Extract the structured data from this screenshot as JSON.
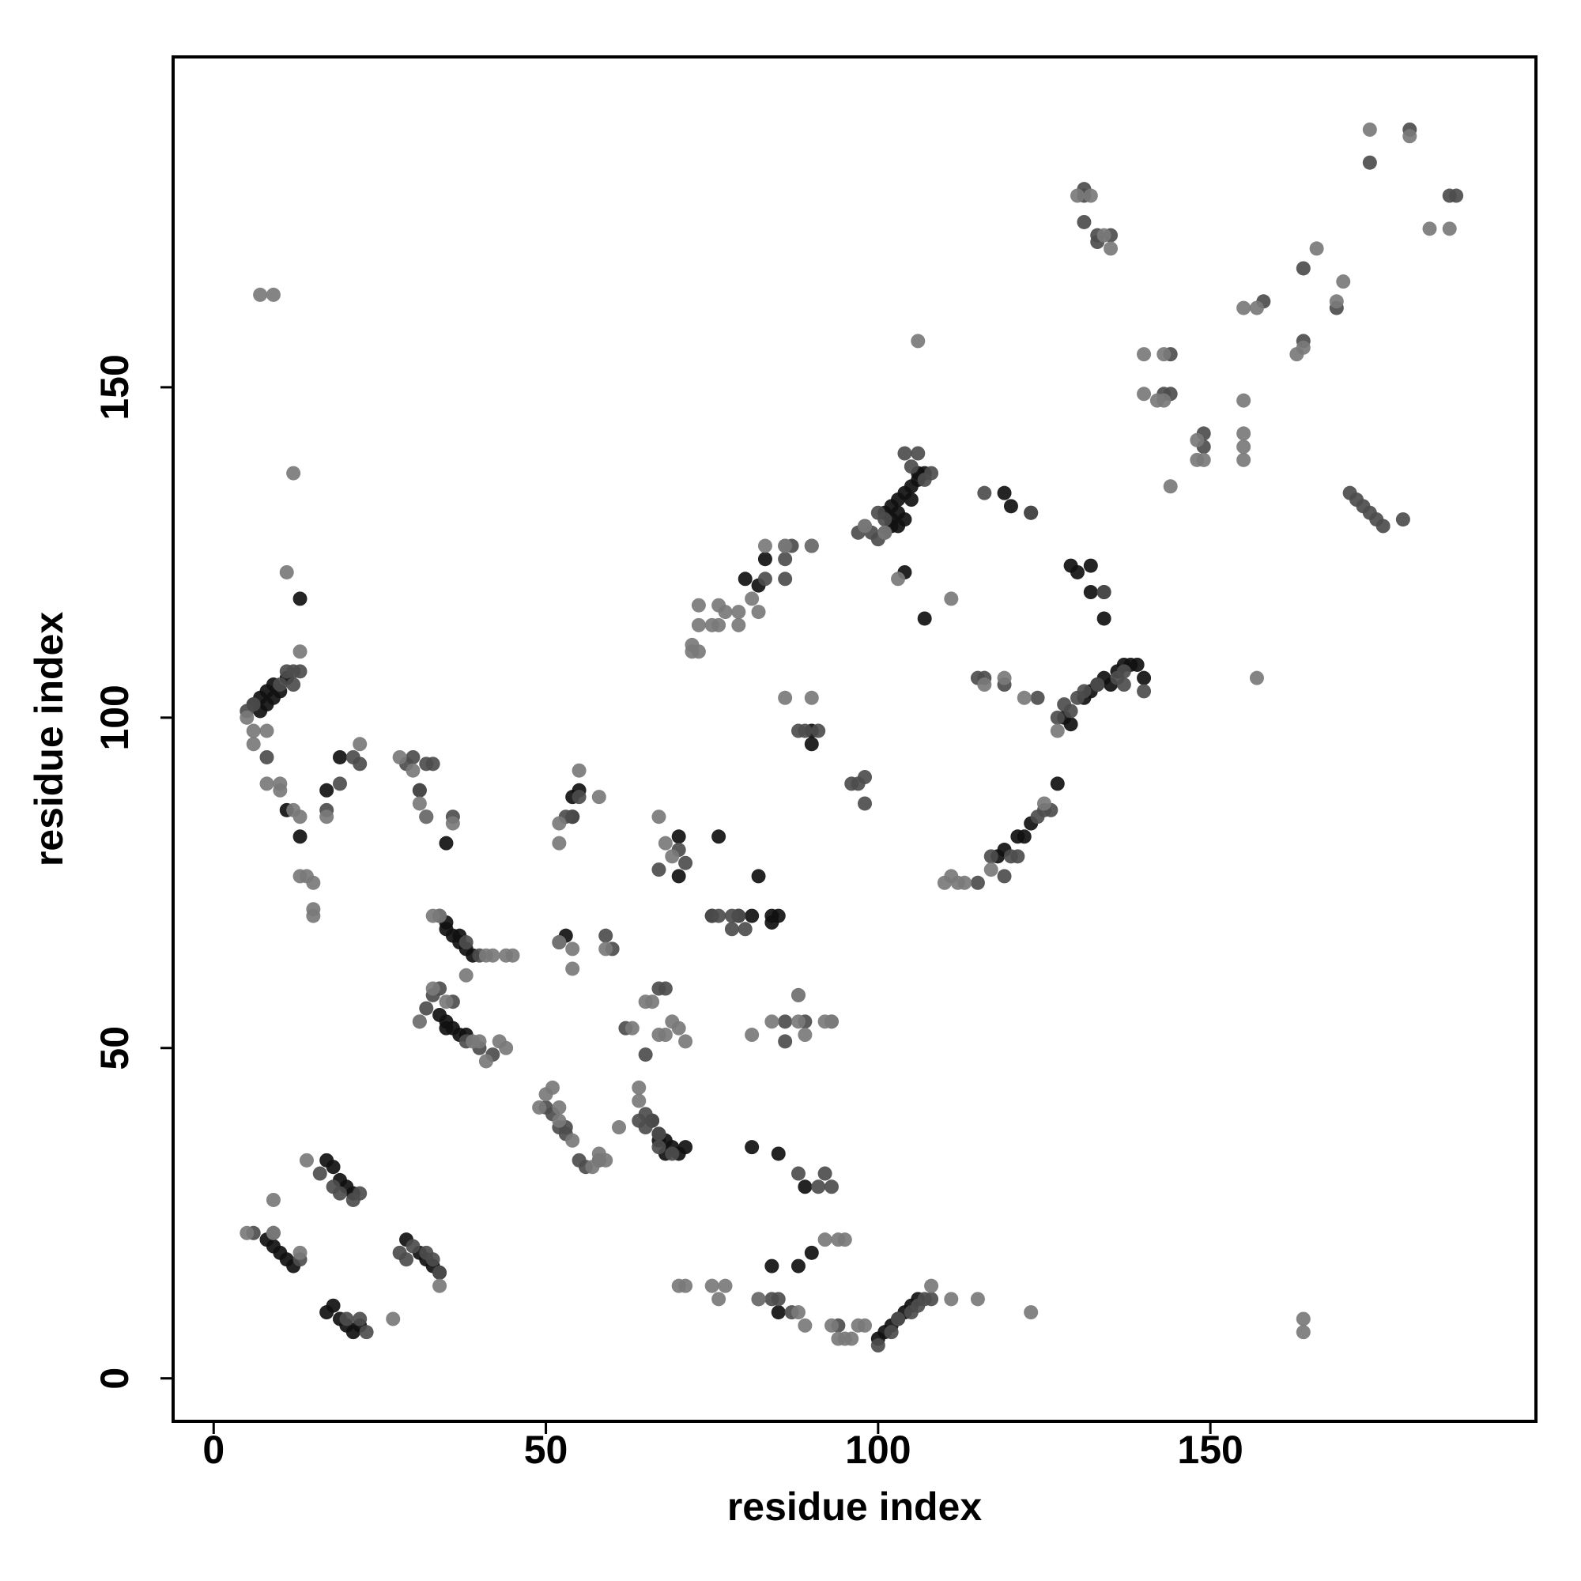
{
  "chart_data": {
    "type": "scatter",
    "x_label": "residue index",
    "y_label": "residue index",
    "xlim": [
      -6.1,
      199
    ],
    "ylim": [
      -6.5,
      200
    ],
    "xticks": [
      0,
      50,
      100,
      150
    ],
    "yticks": [
      0,
      50,
      100,
      150
    ],
    "series": [
      {
        "color": "#111111",
        "x": [
          6,
          7,
          8,
          9,
          7,
          8,
          9,
          10,
          11,
          11,
          13,
          13,
          17,
          19,
          31,
          32,
          35,
          34,
          35,
          35,
          36,
          37,
          37,
          38,
          39,
          34,
          35,
          35,
          36,
          37,
          38,
          54,
          54,
          55,
          52,
          53,
          66,
          67,
          67,
          68,
          68,
          69,
          70,
          71,
          70,
          70,
          76,
          82,
          75,
          79,
          81,
          84,
          84,
          85,
          80,
          82,
          83,
          90,
          90,
          90,
          101,
          102,
          102,
          103,
          103,
          104,
          105,
          106,
          101,
          102,
          103,
          104,
          105,
          106,
          107,
          104,
          107,
          119,
          120,
          123,
          129,
          130,
          132,
          132,
          134,
          134,
          131,
          132,
          133,
          134,
          135,
          136,
          137,
          138,
          139,
          140,
          129,
          128,
          118,
          119,
          121,
          122,
          123,
          127,
          8,
          9,
          10,
          11,
          12,
          17,
          18,
          19,
          20,
          21,
          29,
          31,
          32,
          33,
          34,
          17,
          18,
          19,
          20,
          21,
          22,
          100,
          101,
          102,
          103,
          104,
          105,
          106,
          82,
          85,
          81,
          85,
          89,
          84,
          88,
          90
        ],
        "y": [
          102,
          103,
          104,
          105,
          101,
          102,
          103,
          104,
          106,
          86,
          82,
          118,
          89,
          94,
          89,
          85,
          81,
          70,
          69,
          68,
          67,
          67,
          66,
          65,
          64,
          55,
          54,
          53,
          53,
          52,
          52,
          88,
          85,
          89,
          66,
          67,
          39,
          37,
          36,
          36,
          34,
          35,
          34,
          35,
          82,
          76,
          82,
          76,
          70,
          70,
          70,
          70,
          69,
          70,
          121,
          120,
          124,
          126,
          98,
          96,
          128,
          129,
          132,
          131,
          133,
          134,
          135,
          137,
          131,
          130,
          129,
          130,
          133,
          136,
          137,
          122,
          115,
          134,
          132,
          131,
          123,
          122,
          123,
          119,
          119,
          115,
          103,
          104,
          105,
          106,
          105,
          107,
          108,
          108,
          108,
          106,
          99,
          100,
          79,
          80,
          82,
          82,
          84,
          90,
          21,
          20,
          19,
          18,
          17,
          33,
          32,
          30,
          29,
          28,
          21,
          19,
          18,
          17,
          16,
          10,
          11,
          9,
          8,
          7,
          8,
          6,
          7,
          8,
          9,
          10,
          11,
          12,
          12,
          10,
          35,
          34,
          29,
          17,
          17,
          19
        ]
      },
      {
        "color": "#4d4d4d",
        "x": [
          5,
          6,
          10,
          11,
          12,
          8,
          12,
          13,
          17,
          19,
          21,
          22,
          29,
          30,
          31,
          32,
          33,
          36,
          38,
          40,
          31,
          32,
          33,
          34,
          36,
          38,
          40,
          42,
          50,
          51,
          52,
          53,
          53,
          55,
          56,
          58,
          53,
          54,
          55,
          59,
          60,
          62,
          64,
          65,
          65,
          66,
          67,
          67,
          69,
          67,
          68,
          71,
          70,
          75,
          76,
          78,
          78,
          79,
          80,
          83,
          86,
          86,
          86,
          87,
          88,
          89,
          91,
          96,
          97,
          98,
          98,
          97,
          98,
          99,
          100,
          101,
          100,
          107,
          108,
          105,
          104,
          106,
          115,
          116,
          119,
          123,
          124,
          127,
          128,
          129,
          130,
          131,
          133,
          136,
          137,
          140,
          116,
          115,
          117,
          119,
          120,
          121,
          124,
          125,
          126,
          131,
          133,
          131,
          135,
          134,
          143,
          144,
          149,
          149,
          158,
          164,
          164,
          169,
          171,
          172,
          173,
          174,
          175,
          176,
          179,
          180,
          186,
          187,
          174,
          6,
          9,
          13,
          16,
          18,
          19,
          21,
          22,
          28,
          30,
          32,
          33,
          34,
          20,
          22,
          23,
          29,
          100,
          102,
          103,
          105,
          106,
          107,
          108,
          84,
          85,
          87,
          88,
          91,
          92,
          93,
          94,
          65,
          67,
          89,
          86,
          86,
          133,
          131,
          137,
          144
        ],
        "y": [
          101,
          102,
          105,
          107,
          107,
          94,
          105,
          107,
          86,
          90,
          94,
          93,
          93,
          94,
          89,
          93,
          93,
          85,
          66,
          64,
          54,
          56,
          58,
          59,
          57,
          51,
          50,
          49,
          41,
          40,
          38,
          38,
          37,
          33,
          32,
          33,
          85,
          85,
          88,
          67,
          65,
          53,
          39,
          38,
          40,
          39,
          37,
          35,
          34,
          59,
          59,
          78,
          80,
          70,
          70,
          68,
          70,
          70,
          68,
          121,
          124,
          126,
          121,
          126,
          98,
          98,
          98,
          90,
          90,
          91,
          87,
          128,
          129,
          128,
          127,
          130,
          131,
          136,
          137,
          138,
          140,
          140,
          106,
          106,
          105,
          131,
          103,
          100,
          102,
          101,
          103,
          104,
          105,
          106,
          107,
          104,
          134,
          75,
          79,
          76,
          79,
          79,
          85,
          86,
          86,
          179,
          172,
          175,
          173,
          119,
          149,
          149,
          143,
          141,
          163,
          168,
          157,
          162,
          134,
          133,
          132,
          131,
          130,
          129,
          130,
          189,
          179,
          179,
          184,
          22,
          22,
          18,
          31,
          29,
          28,
          27,
          28,
          19,
          20,
          19,
          18,
          16,
          9,
          9,
          7,
          18,
          5,
          7,
          9,
          10,
          11,
          12,
          12,
          12,
          12,
          10,
          31,
          29,
          31,
          29,
          8,
          49,
          77,
          54,
          51,
          54,
          173,
          180,
          105,
          155
        ]
      },
      {
        "color": "#7a7a7a",
        "x": [
          5,
          6,
          6,
          8,
          8,
          10,
          10,
          12,
          13,
          13,
          14,
          13,
          15,
          15,
          15,
          11,
          12,
          7,
          9,
          17,
          22,
          28,
          30,
          31,
          32,
          33,
          34,
          36,
          41,
          42,
          44,
          45,
          38,
          31,
          33,
          35,
          39,
          40,
          41,
          43,
          44,
          49,
          50,
          51,
          52,
          52,
          54,
          57,
          58,
          58,
          59,
          61,
          52,
          52,
          55,
          58,
          52,
          54,
          54,
          59,
          63,
          64,
          64,
          65,
          66,
          67,
          68,
          69,
          70,
          71,
          67,
          68,
          69,
          72,
          73,
          76,
          79,
          81,
          82,
          77,
          72,
          73,
          73,
          75,
          76,
          79,
          83,
          86,
          90,
          90,
          86,
          88,
          89,
          92,
          93,
          98,
          101,
          103,
          111,
          106,
          110,
          111,
          112,
          113,
          117,
          127,
          116,
          119,
          122,
          125,
          130,
          132,
          134,
          135,
          140,
          140,
          143,
          143,
          144,
          142,
          148,
          148,
          149,
          155,
          155,
          155,
          155,
          157,
          155,
          157,
          163,
          164,
          166,
          169,
          170,
          174,
          180,
          183,
          186,
          9,
          14,
          5,
          9,
          13,
          27,
          34,
          70,
          71,
          75,
          76,
          77,
          82,
          88,
          89,
          93,
          94,
          95,
          96,
          97,
          98,
          108,
          111,
          115,
          123,
          164,
          164,
          92,
          94,
          95,
          88,
          88,
          93,
          81,
          84
        ],
        "y": [
          100,
          98,
          96,
          98,
          90,
          90,
          89,
          86,
          85,
          76,
          76,
          110,
          75,
          71,
          70,
          122,
          137,
          164,
          164,
          85,
          96,
          94,
          92,
          87,
          85,
          70,
          70,
          84,
          64,
          64,
          64,
          64,
          61,
          54,
          59,
          57,
          51,
          51,
          48,
          51,
          50,
          41,
          43,
          44,
          41,
          39,
          36,
          32,
          34,
          33,
          33,
          38,
          84,
          81,
          92,
          88,
          66,
          65,
          62,
          65,
          53,
          44,
          42,
          57,
          57,
          52,
          52,
          54,
          53,
          51,
          85,
          81,
          79,
          111,
          110,
          114,
          116,
          118,
          116,
          116,
          110,
          114,
          117,
          114,
          117,
          114,
          126,
          126,
          126,
          103,
          103,
          58,
          52,
          54,
          54,
          129,
          128,
          121,
          118,
          157,
          75,
          76,
          75,
          75,
          77,
          98,
          105,
          106,
          103,
          87,
          179,
          179,
          173,
          171,
          155,
          149,
          155,
          148,
          135,
          148,
          139,
          142,
          139,
          148,
          143,
          141,
          139,
          106,
          162,
          162,
          155,
          156,
          171,
          163,
          166,
          189,
          188,
          174,
          174,
          27,
          33,
          22,
          22,
          19,
          9,
          14,
          14,
          14,
          14,
          12,
          14,
          12,
          10,
          8,
          8,
          6,
          6,
          6,
          8,
          8,
          14,
          12,
          12,
          10,
          9,
          7,
          21,
          21,
          21,
          58,
          54,
          54,
          52,
          54
        ]
      }
    ]
  }
}
